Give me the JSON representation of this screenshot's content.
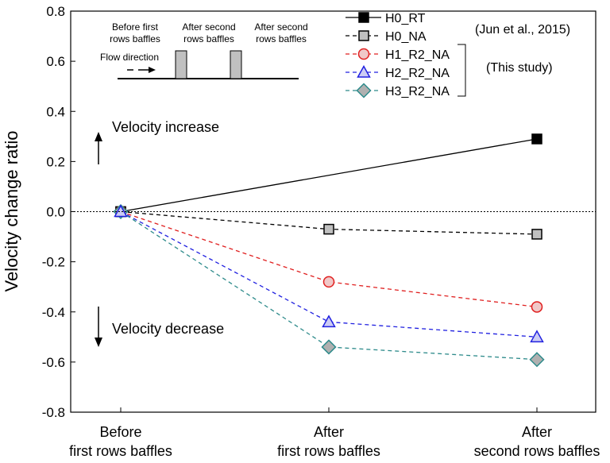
{
  "chart_data": {
    "type": "line",
    "ylabel": "Velocity change ratio",
    "ylim": [
      -0.8,
      0.8
    ],
    "yticks": [
      -0.8,
      -0.6,
      -0.4,
      -0.2,
      0.0,
      0.2,
      0.4,
      0.6,
      0.8
    ],
    "ytick_labels": [
      "-0.8",
      "-0.6",
      "-0.4",
      "-0.2",
      "0.0",
      "0.2",
      "0.4",
      "0.6",
      "0.8"
    ],
    "categories": [
      [
        "Before",
        "first rows baffles"
      ],
      [
        "After",
        "first rows baffles"
      ],
      [
        "After",
        "second rows baffles"
      ]
    ],
    "series": [
      {
        "name": "H0_RT",
        "marker": "square",
        "color": "#000000",
        "fill": "#000000",
        "line": "solid",
        "values": [
          0.0,
          null,
          0.29
        ]
      },
      {
        "name": "H0_NA",
        "marker": "square",
        "color": "#000000",
        "fill": "#c0c0c0",
        "line": "dashed",
        "values": [
          0.0,
          -0.07,
          -0.09
        ]
      },
      {
        "name": "H1_R2_NA",
        "marker": "circle",
        "color": "#e02020",
        "fill": "#f0c8c8",
        "line": "dashed",
        "values": [
          0.0,
          -0.28,
          -0.38
        ]
      },
      {
        "name": "H2_R2_NA",
        "marker": "triangle",
        "color": "#2020e0",
        "fill": "#ccccf4",
        "line": "dashed",
        "values": [
          0.0,
          -0.44,
          -0.5
        ]
      },
      {
        "name": "H3_R2_NA",
        "marker": "diamond",
        "color": "#2e8b8b",
        "fill": "#b0b0b0",
        "line": "dashed",
        "values": [
          0.0,
          -0.54,
          -0.59
        ]
      }
    ],
    "legend": {
      "position": "top-right",
      "group_labels": [
        "(Jun et al., 2015)",
        "(This study)"
      ]
    },
    "annotations": {
      "increase": "Velocity increase",
      "decrease": "Velocity decrease",
      "inset_labels": [
        [
          "Before first",
          "rows baffles"
        ],
        [
          "After second",
          "rows baffles"
        ],
        [
          "After second",
          "rows baffles"
        ]
      ],
      "flow_direction": "Flow direction"
    },
    "zero_line": "dotted",
    "grid": false
  }
}
